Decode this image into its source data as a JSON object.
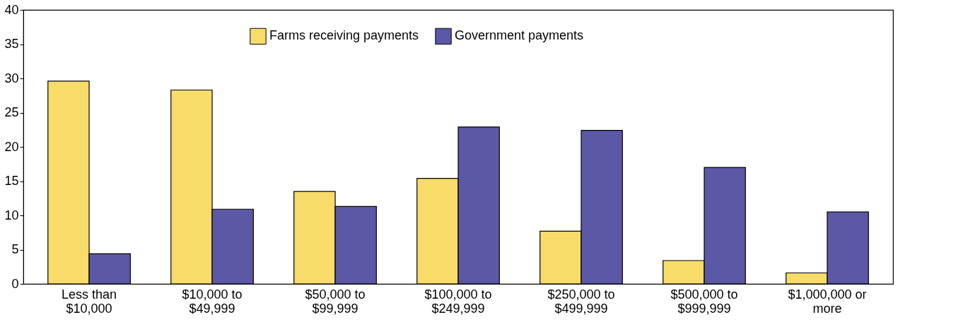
{
  "chart_data": {
    "type": "bar",
    "categories": [
      "Less than\n$10,000",
      "$10,000 to\n$49,999",
      "$50,000 to\n$99,999",
      "$100,000 to\n$249,999",
      "$250,000 to\n$499,999",
      "$500,000 to\n$999,999",
      "$1,000,000 or\nmore"
    ],
    "series": [
      {
        "name": "Farms receiving payments",
        "color": "#f7dc6a",
        "values": [
          29.6,
          28.3,
          13.5,
          15.4,
          7.7,
          3.4,
          1.6
        ]
      },
      {
        "name": "Government payments",
        "color": "#5b58a6",
        "values": [
          4.4,
          10.9,
          11.3,
          22.9,
          22.4,
          17.0,
          10.5
        ]
      }
    ],
    "ylim": [
      0,
      40
    ],
    "yticks": [
      0,
      5,
      10,
      15,
      20,
      25,
      30,
      35,
      40
    ],
    "grid": false,
    "legend": "top"
  }
}
